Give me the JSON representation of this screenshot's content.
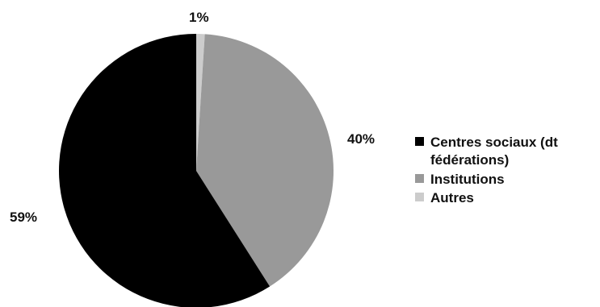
{
  "chart_data": {
    "type": "pie",
    "categories": [
      "Centres sociaux (dt fédérations)",
      "Institutions",
      "Autres"
    ],
    "values": [
      59,
      40,
      1
    ],
    "data_labels": [
      "59%",
      "40%",
      "1%"
    ],
    "colors": [
      "#000000",
      "#999999",
      "#cccccc"
    ],
    "legend_position": "right",
    "legend": [
      {
        "lines": [
          "Centres sociaux (dt",
          "fédérations)"
        ],
        "color": "#000000"
      },
      {
        "lines": [
          "Institutions"
        ],
        "color": "#999999"
      },
      {
        "lines": [
          "Autres"
        ],
        "color": "#cccccc"
      }
    ]
  }
}
